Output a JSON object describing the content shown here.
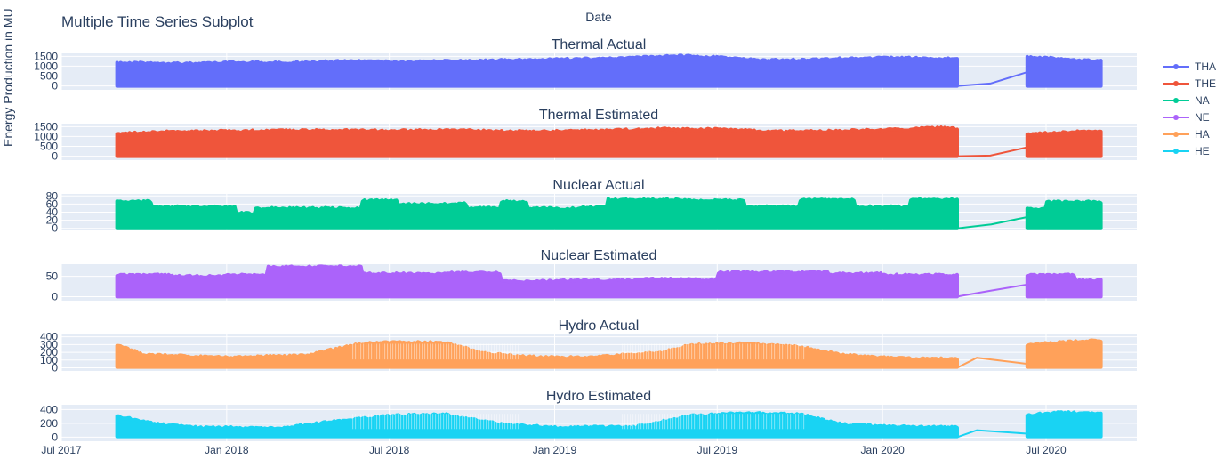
{
  "title": "Multiple Time Series Subplot",
  "xlabel": "Date",
  "ylabel": "Energy Production in MU",
  "x_ticks": [
    "Jul 2017",
    "Jan 2018",
    "Jul 2018",
    "Jan 2019",
    "Jul 2019",
    "Jan 2020",
    "Jul 2020"
  ],
  "legend": [
    {
      "name": "THA",
      "color": "#636efa"
    },
    {
      "name": "THE",
      "color": "#ef553b"
    },
    {
      "name": "NA",
      "color": "#00cc96"
    },
    {
      "name": "NE",
      "color": "#ab63fa"
    },
    {
      "name": "HA",
      "color": "#ffa15a"
    },
    {
      "name": "HE",
      "color": "#19d3f3"
    }
  ],
  "chart_data": {
    "type": "line",
    "xlim": [
      "2017-07-01",
      "2020-10-10"
    ],
    "x_range_start": "2017-09-01",
    "x_range_end": "2020-08-31",
    "data_gap": [
      "2020-03-24",
      "2020-06-10"
    ],
    "subplots": [
      {
        "title": "Thermal Actual",
        "series": "THA",
        "color": "#636efa",
        "yticks": [
          "1500",
          "1000",
          "500",
          "0"
        ],
        "ytick_values": [
          1500,
          1000,
          500,
          0
        ],
        "ylim": [
          -200,
          1650
        ],
        "band_top": [
          [
            "2017-09-01",
            1180
          ],
          [
            "2017-10-15",
            1200
          ],
          [
            "2017-11-29",
            1160
          ],
          [
            "2018-01-13",
            1230
          ],
          [
            "2018-02-27",
            1210
          ],
          [
            "2018-04-13",
            1260
          ],
          [
            "2018-05-28",
            1290
          ],
          [
            "2018-07-12",
            1240
          ],
          [
            "2018-08-26",
            1280
          ],
          [
            "2018-10-10",
            1310
          ],
          [
            "2018-11-24",
            1350
          ],
          [
            "2019-01-08",
            1380
          ],
          [
            "2019-02-22",
            1420
          ],
          [
            "2019-04-08",
            1480
          ],
          [
            "2019-05-23",
            1560
          ],
          [
            "2019-07-07",
            1470
          ],
          [
            "2019-08-21",
            1330
          ],
          [
            "2019-10-05",
            1360
          ],
          [
            "2019-11-19",
            1420
          ],
          [
            "2020-01-03",
            1450
          ],
          [
            "2020-02-17",
            1440
          ],
          [
            "2020-03-24",
            1390
          ],
          [
            "2020-06-10",
            1480
          ],
          [
            "2020-07-25",
            1400
          ],
          [
            "2020-08-31",
            1290
          ]
        ],
        "band_bottom": 0,
        "gap_curve": [
          [
            "2020-03-24",
            0
          ],
          [
            "2020-04-30",
            120
          ],
          [
            "2020-06-10",
            700
          ]
        ]
      },
      {
        "title": "Thermal Estimated",
        "series": "THE",
        "color": "#ef553b",
        "yticks": [
          "1500",
          "1000",
          "500",
          "0"
        ],
        "ytick_values": [
          1500,
          1000,
          500,
          0
        ],
        "ylim": [
          -200,
          1650
        ],
        "band_top": [
          [
            "2017-09-01",
            1200
          ],
          [
            "2017-11-01",
            1280
          ],
          [
            "2018-01-01",
            1300
          ],
          [
            "2018-03-01",
            1330
          ],
          [
            "2018-05-01",
            1340
          ],
          [
            "2018-07-01",
            1320
          ],
          [
            "2018-09-01",
            1360
          ],
          [
            "2018-11-01",
            1300
          ],
          [
            "2019-01-01",
            1290
          ],
          [
            "2019-03-01",
            1340
          ],
          [
            "2019-05-01",
            1420
          ],
          [
            "2019-07-01",
            1400
          ],
          [
            "2019-09-01",
            1280
          ],
          [
            "2019-11-01",
            1310
          ],
          [
            "2020-01-01",
            1370
          ],
          [
            "2020-03-01",
            1480
          ],
          [
            "2020-03-24",
            1420
          ],
          [
            "2020-06-10",
            1180
          ],
          [
            "2020-08-31",
            1320
          ]
        ],
        "band_bottom": 0,
        "gap_curve": [
          [
            "2020-03-24",
            0
          ],
          [
            "2020-04-30",
            30
          ],
          [
            "2020-06-10",
            450
          ]
        ]
      },
      {
        "title": "Nuclear Actual",
        "series": "NA",
        "color": "#00cc96",
        "yticks": [
          "80",
          "60",
          "40",
          "20",
          "0"
        ],
        "ytick_values": [
          80,
          60,
          40,
          20,
          0
        ],
        "ylim": [
          -5,
          85
        ],
        "steps": [
          [
            "2017-09-01",
            68
          ],
          [
            "2017-10-10",
            55
          ],
          [
            "2018-01-10",
            40
          ],
          [
            "2018-02-01",
            51
          ],
          [
            "2018-06-01",
            70
          ],
          [
            "2018-07-10",
            61
          ],
          [
            "2018-09-10",
            63
          ],
          [
            "2018-09-25",
            52
          ],
          [
            "2018-11-01",
            68
          ],
          [
            "2018-12-01",
            51
          ],
          [
            "2019-02-01",
            54
          ],
          [
            "2019-03-01",
            73
          ],
          [
            "2019-06-01",
            70
          ],
          [
            "2019-08-01",
            55
          ],
          [
            "2019-10-01",
            72
          ],
          [
            "2019-12-01",
            55
          ],
          [
            "2020-02-01",
            73
          ],
          [
            "2020-03-24",
            70
          ],
          [
            "2020-06-10",
            50
          ],
          [
            "2020-07-01",
            67
          ],
          [
            "2020-08-31",
            67
          ]
        ],
        "band_bottom": 0,
        "gap_curve": [
          [
            "2020-03-24",
            0
          ],
          [
            "2020-05-01",
            10
          ],
          [
            "2020-06-10",
            28
          ]
        ]
      },
      {
        "title": "Nuclear Estimated",
        "series": "NE",
        "color": "#ab63fa",
        "yticks": [
          "50",
          "0"
        ],
        "ytick_values": [
          50,
          0
        ],
        "ylim": [
          -10,
          80
        ],
        "steps": [
          [
            "2017-09-01",
            55
          ],
          [
            "2017-11-01",
            52
          ],
          [
            "2018-01-01",
            55
          ],
          [
            "2018-02-15",
            75
          ],
          [
            "2018-06-01",
            58
          ],
          [
            "2018-09-01",
            60
          ],
          [
            "2018-11-01",
            40
          ],
          [
            "2019-01-01",
            42
          ],
          [
            "2019-04-01",
            45
          ],
          [
            "2019-06-01",
            44
          ],
          [
            "2019-07-01",
            62
          ],
          [
            "2019-11-01",
            58
          ],
          [
            "2020-01-01",
            55
          ],
          [
            "2020-03-24",
            52
          ],
          [
            "2020-06-10",
            55
          ],
          [
            "2020-08-01",
            42
          ],
          [
            "2020-08-31",
            42
          ]
        ],
        "band_bottom": 0,
        "gap_curve": [
          [
            "2020-03-24",
            0
          ],
          [
            "2020-05-01",
            15
          ],
          [
            "2020-06-10",
            30
          ]
        ]
      },
      {
        "title": "Hydro Actual",
        "series": "HA",
        "color": "#ffa15a",
        "yticks": [
          "400",
          "300",
          "200",
          "100",
          "0"
        ],
        "ytick_values": [
          400,
          300,
          200,
          100,
          0
        ],
        "ylim": [
          -40,
          430
        ],
        "band_top": [
          [
            "2017-09-01",
            300
          ],
          [
            "2017-10-01",
            180
          ],
          [
            "2018-01-01",
            140
          ],
          [
            "2018-04-01",
            170
          ],
          [
            "2018-05-01",
            250
          ],
          [
            "2018-06-01",
            320
          ],
          [
            "2018-07-10",
            340
          ],
          [
            "2018-09-01",
            330
          ],
          [
            "2018-10-15",
            200
          ],
          [
            "2018-12-01",
            150
          ],
          [
            "2019-02-01",
            140
          ],
          [
            "2019-05-01",
            210
          ],
          [
            "2019-06-01",
            300
          ],
          [
            "2019-08-01",
            320
          ],
          [
            "2019-10-01",
            280
          ],
          [
            "2019-11-15",
            180
          ],
          [
            "2020-01-01",
            140
          ],
          [
            "2020-03-24",
            120
          ],
          [
            "2020-06-10",
            300
          ],
          [
            "2020-07-15",
            340
          ],
          [
            "2020-08-31",
            360
          ]
        ],
        "band_bottom": 10,
        "gap_curve": [
          [
            "2020-03-24",
            0
          ],
          [
            "2020-04-15",
            130
          ],
          [
            "2020-06-10",
            50
          ]
        ]
      },
      {
        "title": "Hydro Estimated",
        "series": "HE",
        "color": "#19d3f3",
        "yticks": [
          "400",
          "200",
          "0"
        ],
        "ytick_values": [
          400,
          200,
          0
        ],
        "ylim": [
          -60,
          470
        ],
        "band_top": [
          [
            "2017-09-01",
            320
          ],
          [
            "2017-10-15",
            200
          ],
          [
            "2017-12-01",
            150
          ],
          [
            "2018-03-01",
            140
          ],
          [
            "2018-05-01",
            240
          ],
          [
            "2018-07-01",
            320
          ],
          [
            "2018-09-01",
            340
          ],
          [
            "2018-11-01",
            200
          ],
          [
            "2019-01-01",
            150
          ],
          [
            "2019-04-01",
            160
          ],
          [
            "2019-06-01",
            320
          ],
          [
            "2019-08-01",
            360
          ],
          [
            "2019-10-01",
            340
          ],
          [
            "2019-11-15",
            200
          ],
          [
            "2020-01-01",
            170
          ],
          [
            "2020-03-24",
            150
          ],
          [
            "2020-06-10",
            330
          ],
          [
            "2020-07-15",
            370
          ],
          [
            "2020-08-31",
            350
          ]
        ],
        "band_bottom": 10,
        "gap_curve": [
          [
            "2020-03-24",
            0
          ],
          [
            "2020-04-15",
            100
          ],
          [
            "2020-06-10",
            50
          ]
        ]
      }
    ]
  }
}
